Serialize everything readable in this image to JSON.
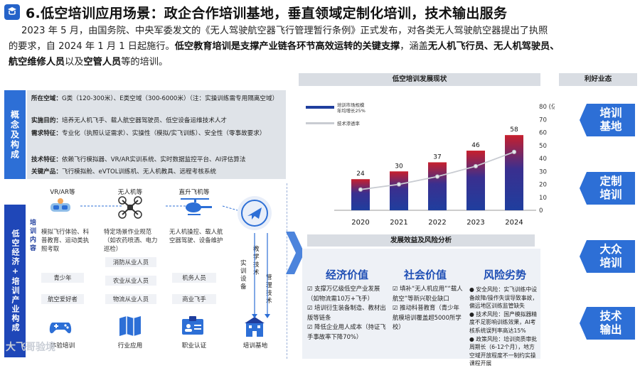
{
  "header": {
    "title": "6.低空培训应用场景：政企合作培训基地，垂直领域定制化培训，技术输出服务"
  },
  "intro": {
    "p1": "2023 年 5 月，由国务院、中央军委发文的《无人驾驶航空器飞行管理暂行条例》正式发布，对各类无人驾驶航空器提出了执照",
    "p2a": "的要求，自 2024 年 1 月 1 日起施行。",
    "p2b": "低空教育培训是支撑产业链各环节高效运转的关键支撑",
    "p2c": "，涵盖",
    "p2d": "无人机飞行员、无人机驾驶员、",
    "p3a": "航空维修人员",
    "p3b": "以及",
    "p3c": "空管人员",
    "p3d": "等的培训。"
  },
  "concept": {
    "tab": "概念及构成",
    "rows": [
      {
        "k": "所在空域：",
        "v": "G类（120-300米）、E类空域（300-6000米）（注：实操训练需专用隔离空域）"
      },
      {
        "k": "实施目的：",
        "v": "培养无人机飞手、载人航空器驾驶员、低空设备运维技术人才"
      },
      {
        "k": "需求特征：",
        "v": "专业化（执照认证需求）、实操性（模拟/实飞训练）、安全性（零事故要求）"
      },
      {
        "k": "技术特征：",
        "v": "依赖飞行模拟器、VR/AR实训系统、实时数据监控平台、AI评估算法"
      },
      {
        "k": "关键产品：",
        "v": "飞行模拟舱、eVTOL训练机、无人机教具、远程考核系统"
      }
    ]
  },
  "econ": {
    "tab": "低空经济+培训产业构成",
    "content_label": "培训内容",
    "columns": [
      {
        "head": "VR/AR等",
        "note": "模拟飞行体验、科普教育、运动类执照考取",
        "tags": [
          "青少年",
          "航空爱好者"
        ],
        "foot": "体验培训"
      },
      {
        "head": "无人机等",
        "note": "特定场景作业规范（如农药喷洒、电力巡检）",
        "tags": [
          "消防从业人员",
          "农业从业人员",
          "物流从业人员"
        ],
        "foot": "行业应用"
      },
      {
        "head": "直升飞机等",
        "note": "无人机操控、载人航空器驾驶、设备维护",
        "tags": [
          "机务人员",
          "商业飞手"
        ],
        "foot": "职业认证"
      }
    ],
    "arrow_labels": [
      "实训设备",
      "教学技术",
      "管理技术"
    ],
    "base_label": "培训基地"
  },
  "chart_section": {
    "title": "低空培训发展现状"
  },
  "chart_data": {
    "type": "bar",
    "categories": [
      "2020",
      "2021",
      "2022",
      "2023",
      "2024"
    ],
    "series": [
      {
        "name": "培训市场规模 年均增长25%",
        "values": [
          24,
          30,
          37,
          46,
          58
        ],
        "color": "#1f3e9e"
      },
      {
        "name": "技术渗透率",
        "values": [
          16,
          20,
          26,
          34,
          45
        ],
        "color": "#c9ccd2"
      }
    ],
    "ylim": [
      0,
      80
    ],
    "yticks": [
      0,
      10,
      20,
      30,
      40,
      50,
      60,
      70,
      80
    ],
    "yunit": "(亿)"
  },
  "analysis": {
    "title": "发展效益及风险分析",
    "cols": [
      {
        "head": "经济价值",
        "items": [
          "支撑万亿级低空产业发展（如物流需10万+飞手）",
          "培训衍生装备制造、教材出版等链条",
          "降低企业用人成本（持证飞手事故率下降70%）"
        ]
      },
      {
        "head": "社会价值",
        "items": [
          "填补“无人机应用”“载人航空”等新兴职业缺口",
          "推动科普教育（青少年航模培训覆盖超5000所学校）"
        ]
      },
      {
        "head": "风险劣势",
        "items": [
          "安全风险：实飞训练中设备故障/操作失误导致事故，偏远地区训练监管缺失",
          "技术风险：国产模拟器精度不足影响训练效果，AI考核系统误判率高达15%",
          "政策风险：培训资质审批周期长（6-12个月），地方空域开放程度不一制约实操课程开展"
        ]
      }
    ]
  },
  "right": {
    "title": "利好业态",
    "buttons": [
      {
        "l1": "培训",
        "l2": "基地"
      },
      {
        "l1": "定制",
        "l2": "培训"
      },
      {
        "l1": "大众",
        "l2": "培训"
      },
      {
        "l1": "技术",
        "l2": "输出"
      }
    ]
  },
  "watermark": "大飞哥验境",
  "colors": {
    "accent": "#2d6fd6",
    "dark_blue": "#1f3e9e",
    "panel_gray": "#dfe3e8"
  }
}
